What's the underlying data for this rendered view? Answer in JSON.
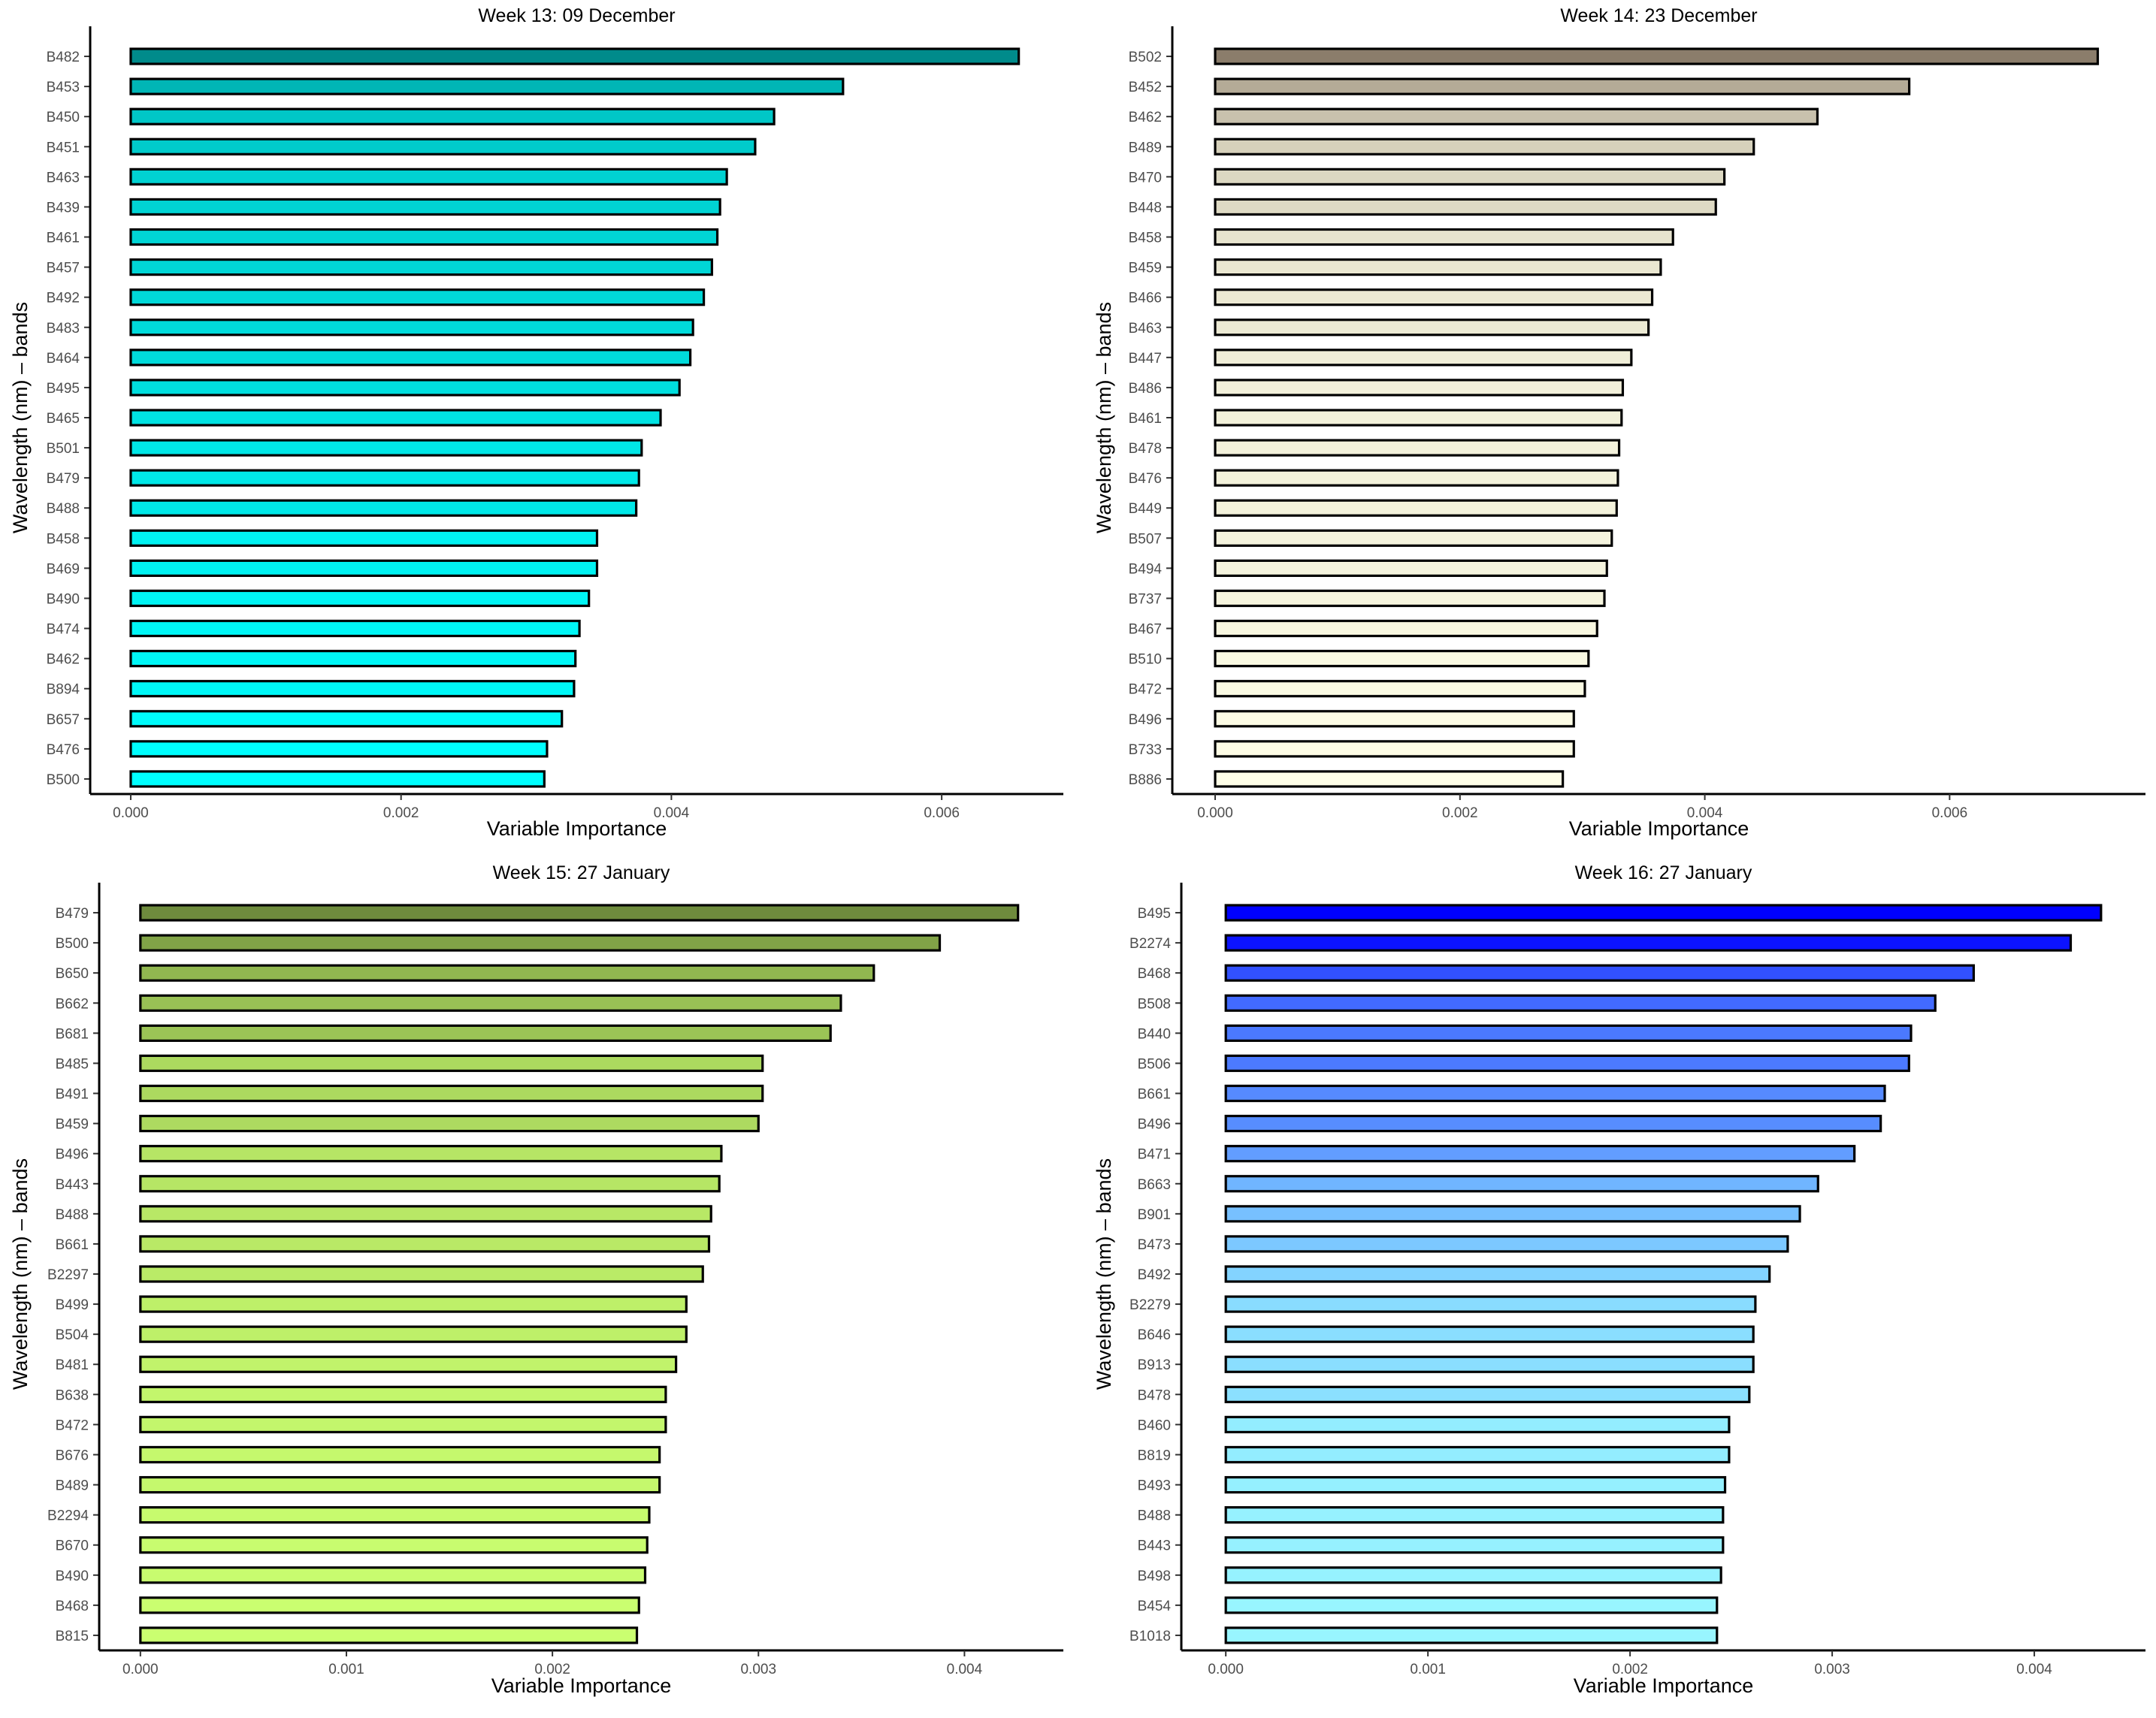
{
  "chart_data": [
    {
      "type": "bar",
      "orientation": "horizontal",
      "title": "Week 13: 09 December",
      "xlabel": "Variable Importance",
      "ylabel": "Wavelength (nm) – bands",
      "xlim": [
        -0.0003,
        0.0069
      ],
      "xticks": [
        0.0,
        0.002,
        0.004,
        0.006
      ],
      "xtick_labels": [
        "0.000",
        "0.002",
        "0.004",
        "0.006"
      ],
      "color_dark": "#008B8B",
      "color_light": "#00FFFF",
      "categories": [
        "B482",
        "B453",
        "B450",
        "B451",
        "B463",
        "B439",
        "B461",
        "B457",
        "B492",
        "B483",
        "B464",
        "B495",
        "B465",
        "B501",
        "B479",
        "B488",
        "B458",
        "B469",
        "B490",
        "B474",
        "B462",
        "B894",
        "B657",
        "B476",
        "B500"
      ],
      "values": [
        0.00657,
        0.00527,
        0.00476,
        0.00462,
        0.00441,
        0.00436,
        0.00434,
        0.0043,
        0.00424,
        0.00416,
        0.00414,
        0.00406,
        0.00392,
        0.00378,
        0.00376,
        0.00374,
        0.00345,
        0.00345,
        0.00339,
        0.00332,
        0.00329,
        0.00328,
        0.00319,
        0.00308,
        0.00306
      ]
    },
    {
      "type": "bar",
      "orientation": "horizontal",
      "title": "Week 14: 23 December",
      "xlabel": "Variable Importance",
      "ylabel": "Wavelength (nm) – bands",
      "xlim": [
        -0.00035,
        0.0076
      ],
      "xticks": [
        0.0,
        0.002,
        0.004,
        0.006
      ],
      "xtick_labels": [
        "0.000",
        "0.002",
        "0.004",
        "0.006"
      ],
      "color_dark": "#8B7D6B",
      "color_light": "#FFFFE8",
      "categories": [
        "B502",
        "B452",
        "B462",
        "B489",
        "B470",
        "B448",
        "B458",
        "B459",
        "B466",
        "B463",
        "B447",
        "B486",
        "B461",
        "B478",
        "B476",
        "B449",
        "B507",
        "B494",
        "B737",
        "B467",
        "B510",
        "B472",
        "B496",
        "B733",
        "B886"
      ],
      "values": [
        0.00721,
        0.00567,
        0.00492,
        0.0044,
        0.00416,
        0.00409,
        0.00374,
        0.00364,
        0.00357,
        0.00354,
        0.0034,
        0.00333,
        0.00332,
        0.0033,
        0.00329,
        0.00328,
        0.00324,
        0.0032,
        0.00318,
        0.00312,
        0.00305,
        0.00302,
        0.00293,
        0.00293,
        0.00284
      ]
    },
    {
      "type": "bar",
      "orientation": "horizontal",
      "title": "Week 15: 27 January",
      "xlabel": "Variable Importance",
      "ylabel": "Wavelength (nm) – bands",
      "xlim": [
        -0.0002,
        0.00448
      ],
      "xticks": [
        0.0,
        0.001,
        0.002,
        0.003,
        0.004
      ],
      "xtick_labels": [
        "0.000",
        "0.001",
        "0.002",
        "0.003",
        "0.004"
      ],
      "color_dark": "#6E8B3D",
      "color_light": "#CAFF70",
      "categories": [
        "B479",
        "B500",
        "B650",
        "B662",
        "B681",
        "B485",
        "B491",
        "B459",
        "B496",
        "B443",
        "B488",
        "B661",
        "B2297",
        "B499",
        "B504",
        "B481",
        "B638",
        "B472",
        "B676",
        "B489",
        "B2294",
        "B670",
        "B490",
        "B468",
        "B815"
      ],
      "values": [
        0.00426,
        0.00388,
        0.00356,
        0.0034,
        0.00335,
        0.00302,
        0.00302,
        0.003,
        0.00282,
        0.00281,
        0.00277,
        0.00276,
        0.00273,
        0.00265,
        0.00265,
        0.0026,
        0.00255,
        0.00255,
        0.00252,
        0.00252,
        0.00247,
        0.00246,
        0.00245,
        0.00242,
        0.00241
      ]
    },
    {
      "type": "bar",
      "orientation": "horizontal",
      "title": "Week 16: 27 January",
      "xlabel": "Variable Importance",
      "ylabel": "Wavelength (nm) – bands",
      "xlim": [
        -0.00022,
        0.00455
      ],
      "xticks": [
        0.0,
        0.001,
        0.002,
        0.003,
        0.004
      ],
      "xtick_labels": [
        "0.000",
        "0.001",
        "0.002",
        "0.003",
        "0.004"
      ],
      "color_dark": "#0000FF",
      "color_light": "#98F5FF",
      "categories": [
        "B495",
        "B2274",
        "B468",
        "B508",
        "B440",
        "B506",
        "B661",
        "B496",
        "B471",
        "B663",
        "B901",
        "B473",
        "B492",
        "B2279",
        "B646",
        "B913",
        "B478",
        "B460",
        "B819",
        "B493",
        "B488",
        "B443",
        "B498",
        "B454",
        "B1018"
      ],
      "values": [
        0.00433,
        0.00418,
        0.0037,
        0.00351,
        0.00339,
        0.00338,
        0.00326,
        0.00324,
        0.00311,
        0.00293,
        0.00284,
        0.00278,
        0.00269,
        0.00262,
        0.00261,
        0.00261,
        0.00259,
        0.00249,
        0.00249,
        0.00247,
        0.00246,
        0.00246,
        0.00245,
        0.00243,
        0.00243
      ]
    }
  ]
}
